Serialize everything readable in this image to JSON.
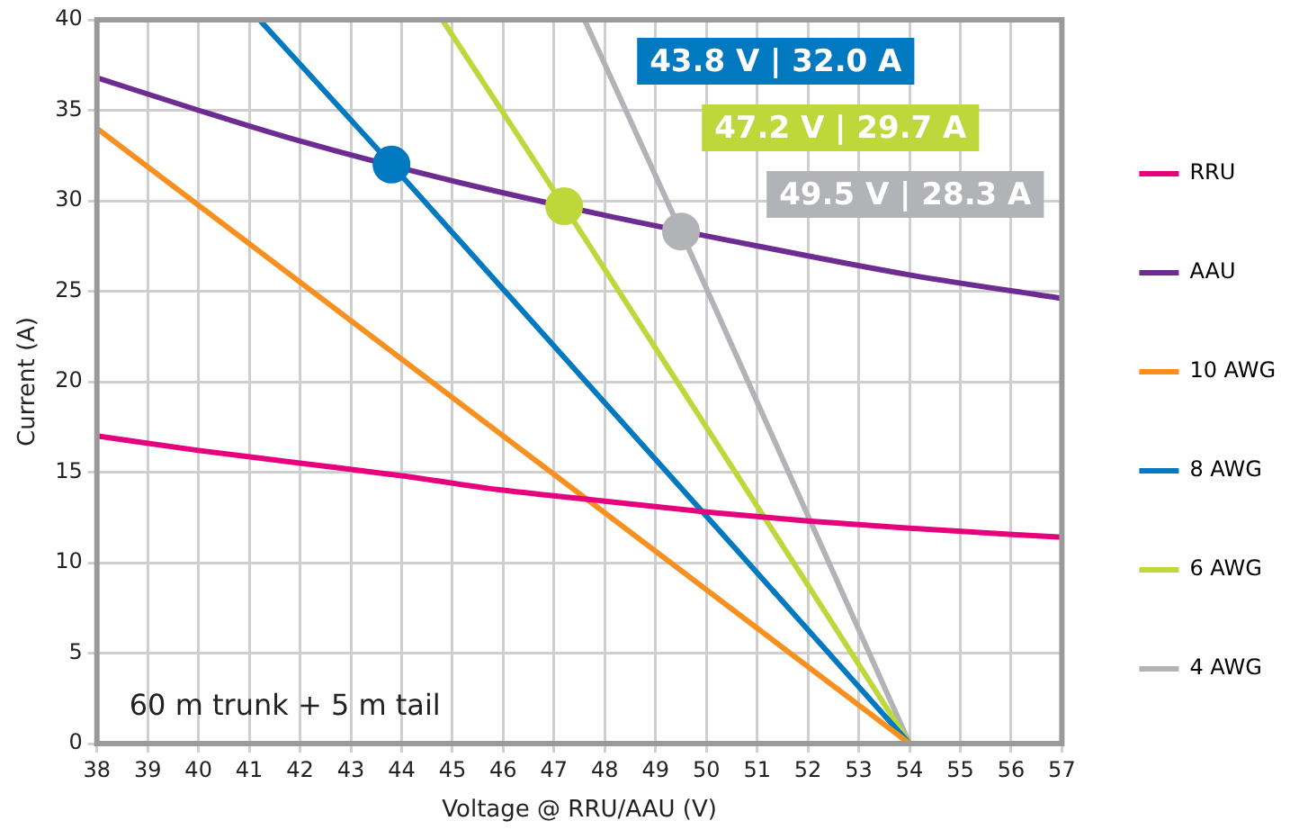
{
  "chart_data": {
    "type": "line",
    "xlabel": "Voltage @ RRU/AAU (V)",
    "ylabel": "Current (A)",
    "xlim": [
      38,
      57
    ],
    "xticks": [
      38,
      39,
      40,
      41,
      42,
      43,
      44,
      45,
      46,
      47,
      48,
      49,
      50,
      51,
      52,
      53,
      54,
      55,
      56,
      57
    ],
    "ylim": [
      0,
      40
    ],
    "yticks": [
      0,
      5,
      10,
      15,
      20,
      25,
      30,
      35,
      40
    ],
    "grid": true,
    "legend": "right",
    "marker": "none",
    "line_style": "solid",
    "series": [
      {
        "name": "RRU",
        "color": "#e6007e",
        "x": [
          38,
          40,
          42,
          44,
          46,
          48,
          50,
          52,
          54,
          57
        ],
        "values": [
          17,
          16.2,
          15.5,
          14.8,
          14,
          13.4,
          12.8,
          12.3,
          11.9,
          11.4
        ]
      },
      {
        "name": "AAU",
        "color": "#6d2c91",
        "x": [
          38,
          40,
          42,
          45,
          48,
          51,
          54,
          57
        ],
        "values": [
          36.8,
          35,
          33.3,
          31.1,
          29.2,
          27.5,
          25.9,
          24.6
        ]
      },
      {
        "name": "10 AWG",
        "color": "#f7901e",
        "x": [
          38,
          54
        ],
        "values": [
          34,
          0
        ]
      },
      {
        "name": "8 AWG",
        "color": "#0079c1",
        "x": [
          41.2,
          43.8,
          54
        ],
        "values": [
          40,
          32,
          0
        ]
      },
      {
        "name": "6 AWG",
        "color": "#bed73b",
        "x": [
          44.8,
          47.2,
          54
        ],
        "values": [
          40,
          29.7,
          0
        ]
      },
      {
        "name": "4 AWG",
        "color": "#b1b3b6",
        "x": [
          47.6,
          49.5,
          54
        ],
        "values": [
          40,
          28.3,
          0
        ]
      },
      {
        "type": "scatter",
        "marker": "circle",
        "x": [
          43.8,
          47.2,
          49.5
        ],
        "values": [
          32,
          29.7,
          28.3
        ],
        "colors": [
          "#0079c1",
          "#bed73b",
          "#b1b3b6"
        ]
      }
    ],
    "annotations": [
      "43.8 V | 32.0 A",
      "47.2 V | 29.7 A",
      "49.5 V | 28.3 A",
      "60 m trunk + 5 m tail"
    ]
  }
}
